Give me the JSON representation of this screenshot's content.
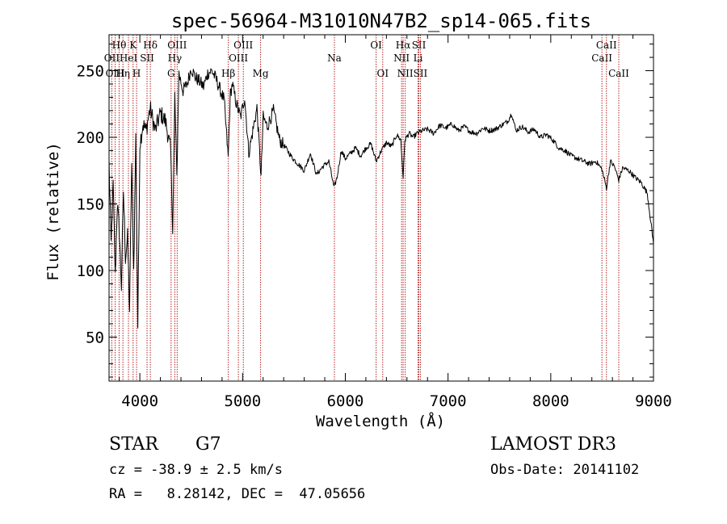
{
  "chart_data": {
    "type": "line",
    "title": "spec-56964-M31010N47B2_sp14-065.fits",
    "xlabel": "Wavelength (Å)",
    "ylabel": "Flux (relative)",
    "xlim": [
      3700,
      9000
    ],
    "ylim": [
      17,
      277
    ],
    "xticks": [
      4000,
      5000,
      6000,
      7000,
      8000,
      9000
    ],
    "yticks": [
      50,
      100,
      150,
      200,
      250
    ],
    "line_color": "#b22222",
    "spectrum": {
      "name": "flux",
      "x": [
        3700,
        3720,
        3740,
        3760,
        3780,
        3800,
        3820,
        3840,
        3860,
        3880,
        3900,
        3920,
        3940,
        3960,
        3980,
        4000,
        4030,
        4060,
        4100,
        4150,
        4200,
        4250,
        4300,
        4320,
        4340,
        4360,
        4380,
        4420,
        4460,
        4500,
        4540,
        4580,
        4620,
        4660,
        4700,
        4740,
        4780,
        4820,
        4860,
        4880,
        4900,
        4940,
        4980,
        5020,
        5060,
        5100,
        5140,
        5180,
        5200,
        5240,
        5300,
        5360,
        5420,
        5480,
        5540,
        5600,
        5660,
        5720,
        5780,
        5840,
        5890,
        5920,
        5960,
        6000,
        6050,
        6100,
        6150,
        6200,
        6250,
        6300,
        6350,
        6400,
        6450,
        6500,
        6540,
        6563,
        6580,
        6620,
        6660,
        6700,
        6750,
        6800,
        6860,
        6920,
        6980,
        7040,
        7100,
        7160,
        7220,
        7280,
        7340,
        7400,
        7460,
        7520,
        7580,
        7620,
        7660,
        7720,
        7780,
        7840,
        7900,
        7960,
        8020,
        8080,
        8140,
        8200,
        8260,
        8320,
        8380,
        8440,
        8498,
        8542,
        8580,
        8620,
        8662,
        8700,
        8760,
        8820,
        8880,
        8940,
        9000
      ],
      "y": [
        182,
        120,
        165,
        95,
        150,
        130,
        88,
        160,
        110,
        125,
        70,
        180,
        100,
        200,
        58,
        195,
        210,
        205,
        222,
        205,
        218,
        212,
        190,
        130,
        232,
        170,
        248,
        235,
        240,
        252,
        245,
        242,
        238,
        248,
        250,
        244,
        236,
        228,
        185,
        232,
        240,
        225,
        215,
        230,
        188,
        205,
        222,
        170,
        215,
        208,
        220,
        198,
        192,
        185,
        180,
        175,
        188,
        172,
        178,
        182,
        162,
        170,
        190,
        184,
        188,
        192,
        186,
        192,
        195,
        182,
        190,
        196,
        193,
        202,
        198,
        170,
        198,
        203,
        200,
        203,
        205,
        206,
        203,
        209,
        207,
        210,
        205,
        208,
        204,
        203,
        207,
        205,
        206,
        209,
        212,
        218,
        205,
        208,
        204,
        206,
        200,
        202,
        198,
        192,
        190,
        186,
        184,
        182,
        180,
        182,
        176,
        162,
        182,
        178,
        168,
        177,
        175,
        170,
        166,
        158,
        120
      ]
    },
    "lines": [
      {
        "label": "Hθ",
        "x": 3798,
        "row": 1
      },
      {
        "label": "OII",
        "x": 3727,
        "row": 2
      },
      {
        "label": "OIII",
        "x": 3760,
        "row": 3
      },
      {
        "label": "Hη",
        "x": 3835,
        "row": 3
      },
      {
        "label": "HeI",
        "x": 3889,
        "row": 2
      },
      {
        "label": "K",
        "x": 3934,
        "row": 1
      },
      {
        "label": "H",
        "x": 3968,
        "row": 3
      },
      {
        "label": "SII",
        "x": 4070,
        "row": 2
      },
      {
        "label": "Hδ",
        "x": 4102,
        "row": 1
      },
      {
        "label": "G",
        "x": 4304,
        "row": 3
      },
      {
        "label": "Hγ",
        "x": 4340,
        "row": 2
      },
      {
        "label": "OIII",
        "x": 4363,
        "row": 1
      },
      {
        "label": "Hβ",
        "x": 4861,
        "row": 3
      },
      {
        "label": "OIII",
        "x": 4959,
        "row": 2
      },
      {
        "label": "OIII",
        "x": 5007,
        "row": 1
      },
      {
        "label": "Mg",
        "x": 5175,
        "row": 3
      },
      {
        "label": "Na",
        "x": 5894,
        "row": 2
      },
      {
        "label": "OI",
        "x": 6300,
        "row": 1
      },
      {
        "label": "OI",
        "x": 6364,
        "row": 3
      },
      {
        "label": "NII",
        "x": 6548,
        "row": 2
      },
      {
        "label": "Hα",
        "x": 6563,
        "row": 1
      },
      {
        "label": "NII",
        "x": 6583,
        "row": 3
      },
      {
        "label": "SII",
        "x": 6716,
        "row": 1
      },
      {
        "label": "Li",
        "x": 6708,
        "row": 2
      },
      {
        "label": "SII",
        "x": 6731,
        "row": 3
      },
      {
        "label": "CaII",
        "x": 8498,
        "row": 2
      },
      {
        "label": "CaII",
        "x": 8542,
        "row": 1
      },
      {
        "label": "CaII",
        "x": 8662,
        "row": 3
      }
    ]
  },
  "info": {
    "class_label": "STAR",
    "subclass": "G7",
    "survey": "LAMOST DR3",
    "redshift": "cz = -38.9 ± 2.5 km/s",
    "obs_date": "Obs-Date: 20141102",
    "coords": "RA =   8.28142, DEC =  47.05656"
  }
}
